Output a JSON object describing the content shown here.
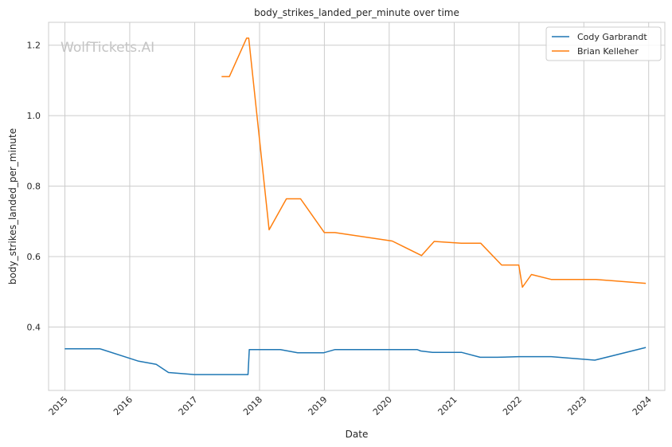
{
  "watermark": "WolfTickets.AI",
  "chart_data": {
    "type": "line",
    "title": "body_strikes_landed_per_minute over time",
    "xlabel": "Date",
    "ylabel": "body_strikes_landed_per_minute",
    "ylim": [
      0.22,
      1.265
    ],
    "xlim": [
      "2014-10-01",
      "2024-04-01"
    ],
    "yticks": [
      0.4,
      0.6,
      0.8,
      1.0,
      1.2
    ],
    "ytick_labels": [
      "0.4",
      "0.6",
      "0.8",
      "1.0",
      "1.2"
    ],
    "xticks": [
      "2015-01-01",
      "2016-01-01",
      "2017-01-01",
      "2018-01-01",
      "2019-01-01",
      "2020-01-01",
      "2021-01-01",
      "2022-01-01",
      "2023-01-01",
      "2024-01-01"
    ],
    "xtick_labels": [
      "2015",
      "2016",
      "2017",
      "2018",
      "2019",
      "2020",
      "2021",
      "2022",
      "2023",
      "2024"
    ],
    "grid": true,
    "legend_position": "top-right",
    "series": [
      {
        "name": "Cody Garbrandt",
        "color": "#1f77b4",
        "points": [
          [
            "2014-12-31",
            0.338
          ],
          [
            "2015-07-18",
            0.338
          ],
          [
            "2016-02-20",
            0.303
          ],
          [
            "2016-05-29",
            0.294
          ],
          [
            "2016-08-06",
            0.271
          ],
          [
            "2016-12-30",
            0.265
          ],
          [
            "2017-10-28",
            0.265
          ],
          [
            "2017-11-04",
            0.336
          ],
          [
            "2018-04-28",
            0.336
          ],
          [
            "2018-08-04",
            0.327
          ],
          [
            "2018-12-29",
            0.327
          ],
          [
            "2019-03-02",
            0.336
          ],
          [
            "2020-06-06",
            0.336
          ],
          [
            "2020-06-27",
            0.332
          ],
          [
            "2020-09-01",
            0.328
          ],
          [
            "2021-02-13",
            0.328
          ],
          [
            "2021-05-27",
            0.314
          ],
          [
            "2021-09-01",
            0.314
          ],
          [
            "2021-12-31",
            0.316
          ],
          [
            "2022-07-01",
            0.316
          ],
          [
            "2023-03-04",
            0.306
          ],
          [
            "2023-12-16",
            0.342
          ]
        ]
      },
      {
        "name": "Brian Kelleher",
        "color": "#ff7f0e",
        "points": [
          [
            "2017-06-01",
            1.111
          ],
          [
            "2017-07-15",
            1.111
          ],
          [
            "2017-10-20",
            1.22
          ],
          [
            "2017-11-01",
            1.22
          ],
          [
            "2018-02-24",
            0.676
          ],
          [
            "2018-06-01",
            0.764
          ],
          [
            "2018-08-20",
            0.764
          ],
          [
            "2019-01-01",
            0.668
          ],
          [
            "2019-03-01",
            0.668
          ],
          [
            "2020-01-18",
            0.644
          ],
          [
            "2020-07-01",
            0.603
          ],
          [
            "2020-09-10",
            0.643
          ],
          [
            "2021-02-10",
            0.638
          ],
          [
            "2021-05-30",
            0.638
          ],
          [
            "2021-09-25",
            0.576
          ],
          [
            "2021-12-31",
            0.576
          ],
          [
            "2022-01-20",
            0.513
          ],
          [
            "2022-03-12",
            0.549
          ],
          [
            "2022-07-01",
            0.535
          ],
          [
            "2023-03-10",
            0.535
          ],
          [
            "2023-12-16",
            0.524
          ]
        ]
      }
    ]
  }
}
